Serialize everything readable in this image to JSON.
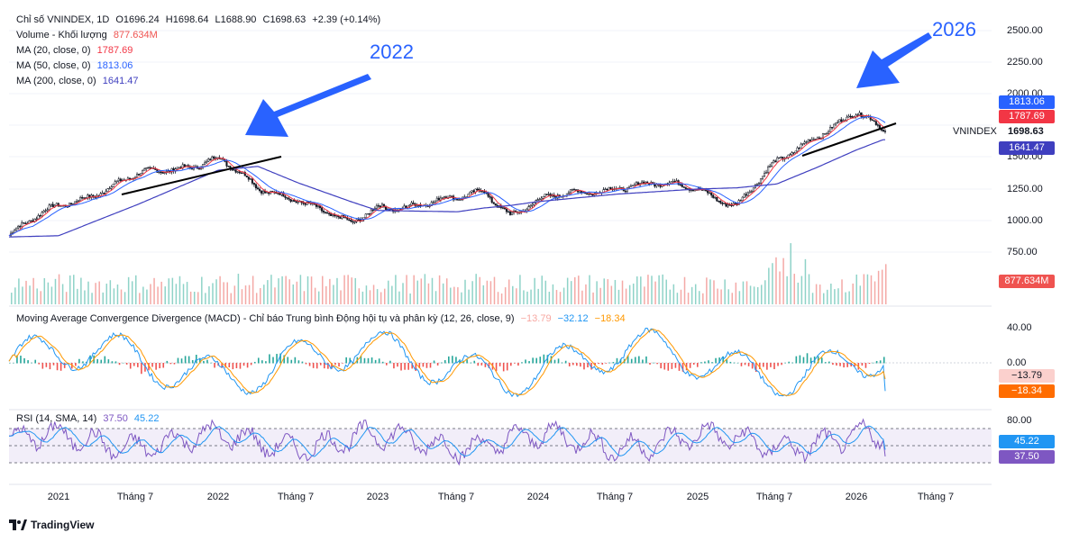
{
  "header": {
    "symbol": "Chỉ số VNINDEX, 1D",
    "open": "O1696.24",
    "high": "H1698.64",
    "low": "L1688.90",
    "close": "C1698.63",
    "change": "+2.39 (+0.14%)",
    "volume_label": "Volume - Khối lượng",
    "volume_value": "877.634M",
    "ma20_label": "MA (20, close, 0)",
    "ma20_value": "1787.69",
    "ma50_label": "MA (50, close, 0)",
    "ma50_value": "1813.06",
    "ma200_label": "MA (200, close, 0)",
    "ma200_value": "1641.47"
  },
  "macd_legend": {
    "label": "Moving Average Convergence Divergence (MACD) - Chỉ báo Trung bình Động hội tụ và phân kỳ (12, 26, close, 9)",
    "hist": "−13.79",
    "macd": "−32.12",
    "signal": "−18.34"
  },
  "rsi_legend": {
    "label": "RSI (14, SMA, 14)",
    "rsi": "37.50",
    "sma": "45.22"
  },
  "annotations": {
    "left": "2022",
    "right": "2026"
  },
  "price_axis": [
    "2500.00",
    "2250.00",
    "2000.00",
    "1750.00",
    "1500.00",
    "1250.00",
    "1000.00",
    "750.00"
  ],
  "macd_axis": [
    "40.00",
    "0.00"
  ],
  "rsi_axis": [
    "80.00"
  ],
  "price_badges": {
    "ma50": "1813.06",
    "ma20": "1787.69",
    "last": "1698.63",
    "symbol_tag": "VNINDEX",
    "ma200": "1641.47",
    "volume": "877.634M"
  },
  "macd_badges": {
    "hist": "−13.79",
    "signal": "−18.34"
  },
  "rsi_badges": {
    "sma": "45.22",
    "rsi": "37.50"
  },
  "time_axis": [
    "2021",
    "Tháng 7",
    "2022",
    "Tháng 7",
    "2023",
    "Tháng 7",
    "2024",
    "Tháng 7",
    "2025",
    "Tháng 7",
    "2026",
    "Tháng 7"
  ],
  "brand": "TradingView",
  "colors": {
    "up": "#26a69a",
    "down": "#ef5350",
    "ma20": "#f23645",
    "ma50": "#2962ff",
    "ma200": "#3f3fbf",
    "macd": "#2196f3",
    "signal": "#ff9800",
    "rsi": "#7e57c2",
    "rsi_sma": "#2196f3"
  },
  "chart_data": {
    "type": "line",
    "title": "VNINDEX 1D",
    "x": [
      "2021-01",
      "2021-07",
      "2022-01",
      "2022-04",
      "2022-07",
      "2022-11",
      "2023-01",
      "2023-07",
      "2023-09",
      "2023-11",
      "2024-01",
      "2024-07",
      "2025-01",
      "2025-04",
      "2025-07",
      "2025-10",
      "2026-01",
      "2026-03"
    ],
    "series": [
      {
        "name": "Close (approx.)",
        "values": [
          1120,
          1350,
          1500,
          1240,
          1190,
          950,
          1110,
          1160,
          1240,
          1060,
          1150,
          1280,
          1270,
          1120,
          1450,
          1690,
          1850,
          1698.63
        ]
      },
      {
        "name": "MA200 (approx.)",
        "values": [
          880,
          1130,
          1400,
          1430,
          1300,
          1150,
          1080,
          1070,
          1100,
          1120,
          1150,
          1210,
          1250,
          1260,
          1290,
          1420,
          1560,
          1641.47
        ]
      }
    ],
    "last": {
      "close": 1698.63,
      "ma20": 1787.69,
      "ma50": 1813.06,
      "ma200": 1641.47,
      "volume": "877.634M"
    },
    "macd": {
      "range": [
        -55,
        55
      ],
      "last_macd": -32.12,
      "last_signal": -18.34,
      "last_hist": -13.79
    },
    "rsi": {
      "bands": [
        30,
        70
      ],
      "last_rsi": 37.5,
      "last_sma": 45.22
    },
    "ylim": [
      750,
      2500
    ],
    "xlabel": "",
    "ylabel": ""
  }
}
